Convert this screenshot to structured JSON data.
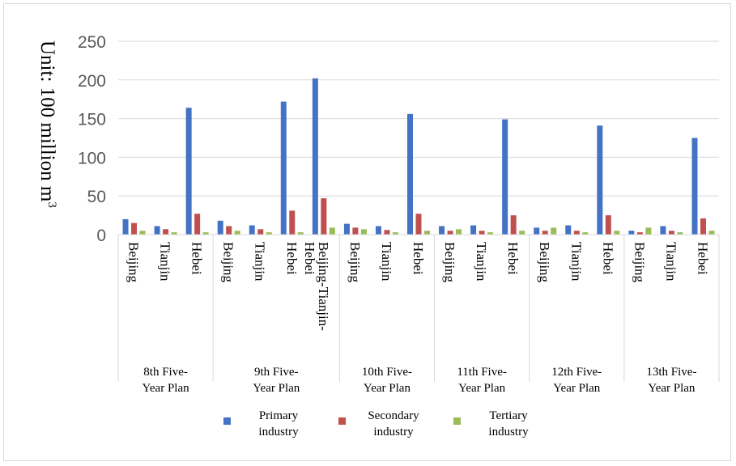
{
  "chart_data": {
    "type": "bar",
    "ylabel": "Unit: 100 million m",
    "ylabel_sup": "3",
    "ylim": [
      0,
      250
    ],
    "yticks": [
      0,
      50,
      100,
      150,
      200,
      250
    ],
    "grid": "horizontal",
    "legend_position": "bottom",
    "groups": [
      {
        "label": [
          "8th Five-",
          "Year Plan"
        ],
        "categories": [
          [
            "Beijing"
          ],
          [
            "Tianjin"
          ],
          [
            "Hebei"
          ]
        ]
      },
      {
        "label": [
          "9th Five-",
          "Year Plan"
        ],
        "categories": [
          [
            "Beijing"
          ],
          [
            "Tianjin"
          ],
          [
            "Hebei"
          ],
          [
            "Beijing-Tianjin-",
            "Hebei"
          ]
        ]
      },
      {
        "label": [
          "10th Five-",
          "Year Plan"
        ],
        "categories": [
          [
            "Beijing"
          ],
          [
            "Tianjin"
          ],
          [
            "Hebei"
          ]
        ]
      },
      {
        "label": [
          "11th Five-",
          "Year Plan"
        ],
        "categories": [
          [
            "Beijing"
          ],
          [
            "Tianjin"
          ],
          [
            "Hebei"
          ]
        ]
      },
      {
        "label": [
          "12th Five-",
          "Year Plan"
        ],
        "categories": [
          [
            "Beijing"
          ],
          [
            "Tianjin"
          ],
          [
            "Hebei"
          ]
        ]
      },
      {
        "label": [
          "13th Five-",
          "Year Plan"
        ],
        "categories": [
          [
            "Beijing"
          ],
          [
            "Tianjin"
          ],
          [
            "Hebei"
          ]
        ]
      }
    ],
    "series": [
      {
        "name": [
          "Primary",
          "industry"
        ],
        "color": "#4472C4",
        "values": [
          20,
          11,
          164,
          18,
          12,
          172,
          202,
          14,
          11,
          156,
          11,
          12,
          149,
          9,
          12,
          141,
          5,
          11,
          125
        ]
      },
      {
        "name": [
          "Secondary",
          "industry"
        ],
        "color": "#C0504D",
        "values": [
          15,
          7,
          27,
          11,
          7,
          31,
          47,
          9,
          6,
          27,
          5,
          5,
          25,
          5,
          5,
          25,
          3,
          5,
          21
        ]
      },
      {
        "name": [
          "Tertiary",
          "industry"
        ],
        "color": "#9BBB59",
        "values": [
          5,
          3,
          3,
          5,
          3,
          3,
          9,
          7,
          3,
          5,
          7,
          3,
          5,
          9,
          3,
          5,
          9,
          3,
          5
        ]
      }
    ]
  }
}
